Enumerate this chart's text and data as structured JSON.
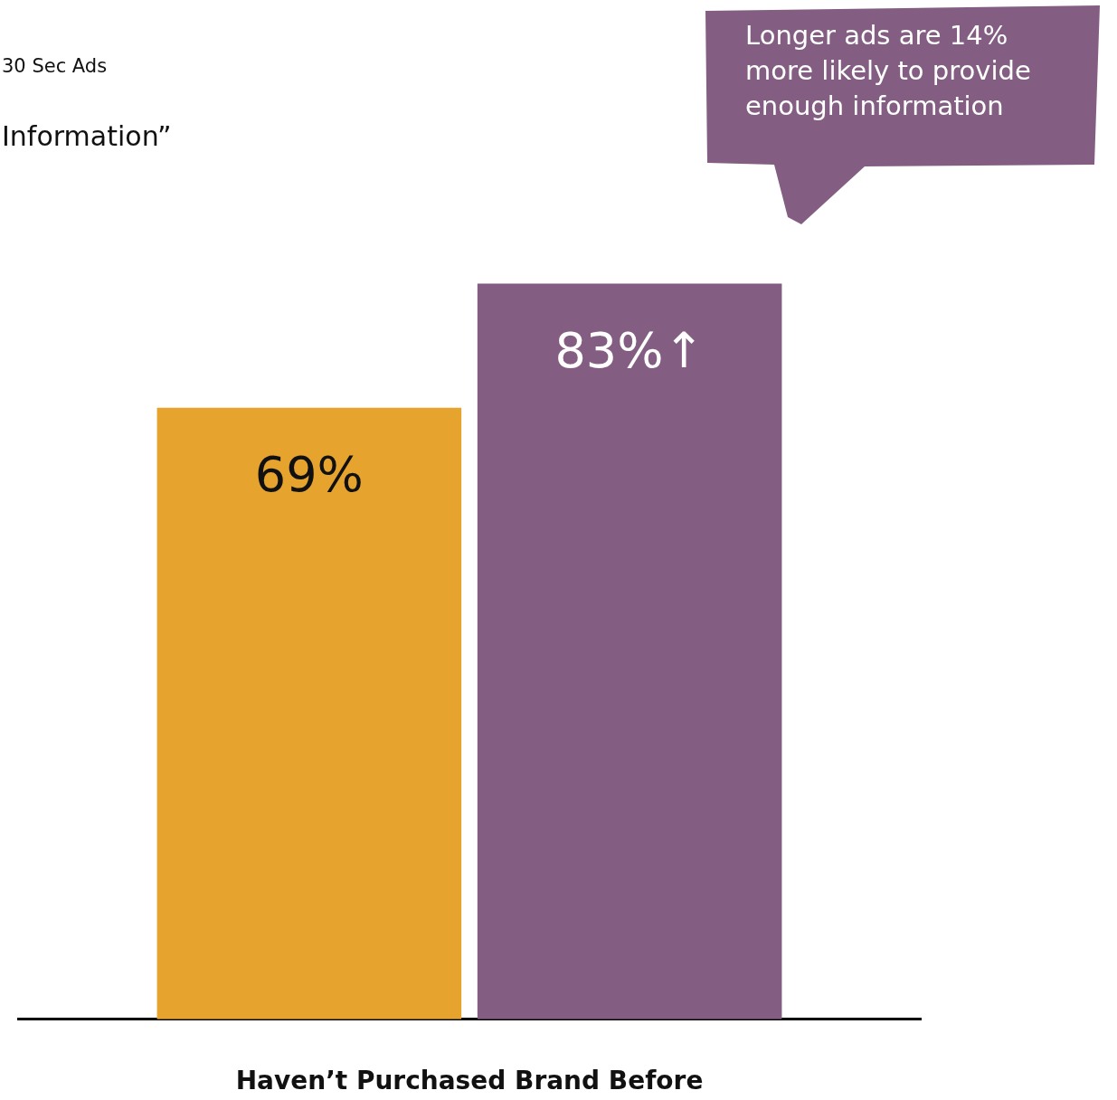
{
  "chart_data": {
    "type": "bar",
    "subtitle": "Information”",
    "annotations": [
      "30 Sec Ads",
      "Longer ads are 14% more likely to provide enough information"
    ],
    "xlabel": "Haven’t Purchased Brand Before",
    "categories": [
      null
    ],
    "series": [
      {
        "color": "#e6a42f",
        "values": [
          69
        ],
        "value_labels": [
          "69%"
        ]
      },
      {
        "color": "#835e82",
        "values": [
          83
        ],
        "value_labels": [
          "83%↑"
        ]
      }
    ]
  }
}
